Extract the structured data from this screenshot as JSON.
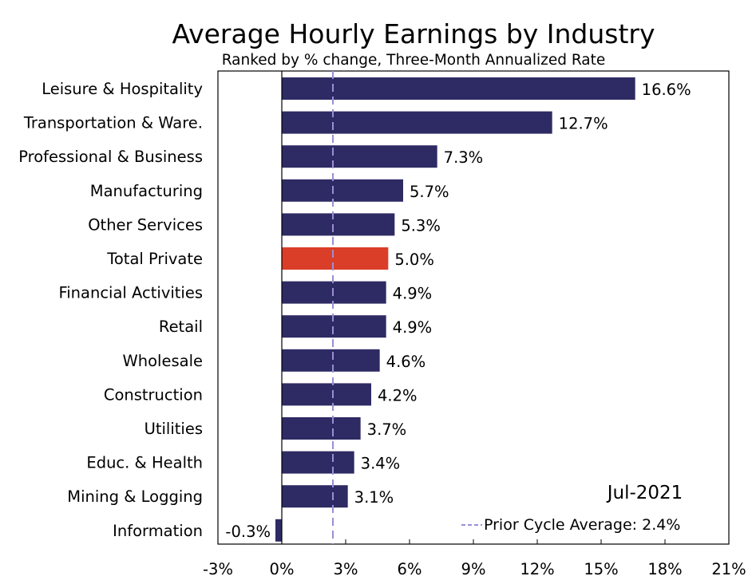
{
  "chart_data": {
    "type": "bar",
    "orientation": "horizontal",
    "title": "Average Hourly Earnings by Industry",
    "subtitle": "Ranked by % change, Three-Month Annualized Rate",
    "categories": [
      "Leisure & Hospitality",
      "Transportation & Ware.",
      "Professional & Business",
      "Manufacturing",
      "Other Services",
      "Total Private",
      "Financial Activities",
      "Retail",
      "Wholesale",
      "Construction",
      "Utilities",
      "Educ. & Health",
      "Mining & Logging",
      "Information"
    ],
    "values": [
      16.6,
      12.7,
      7.3,
      5.7,
      5.3,
      5.0,
      4.9,
      4.9,
      4.6,
      4.2,
      3.7,
      3.4,
      3.1,
      -0.3
    ],
    "value_labels": [
      "16.6%",
      "12.7%",
      "7.3%",
      "5.7%",
      "5.3%",
      "5.0%",
      "4.9%",
      "4.9%",
      "4.6%",
      "4.2%",
      "3.7%",
      "3.4%",
      "3.1%",
      "-0.3%"
    ],
    "highlight_category": "Total Private",
    "xlim": [
      -3,
      21
    ],
    "xticks": [
      -3,
      0,
      3,
      6,
      9,
      12,
      15,
      18,
      21
    ],
    "xtick_labels": [
      "-3%",
      "0%",
      "3%",
      "6%",
      "9%",
      "12%",
      "15%",
      "18%",
      "21%"
    ],
    "reference_line": {
      "value": 2.4,
      "label": "Prior Cycle Average: 2.4%"
    },
    "annotation": "Jul-2021",
    "xlabel": "",
    "ylabel": "",
    "grid": false,
    "legend_position": "bottom-right",
    "colors": {
      "bar": "#2e2a63",
      "highlight": "#db3e28",
      "reference": "#9a8fd6",
      "text": "#000000"
    }
  }
}
